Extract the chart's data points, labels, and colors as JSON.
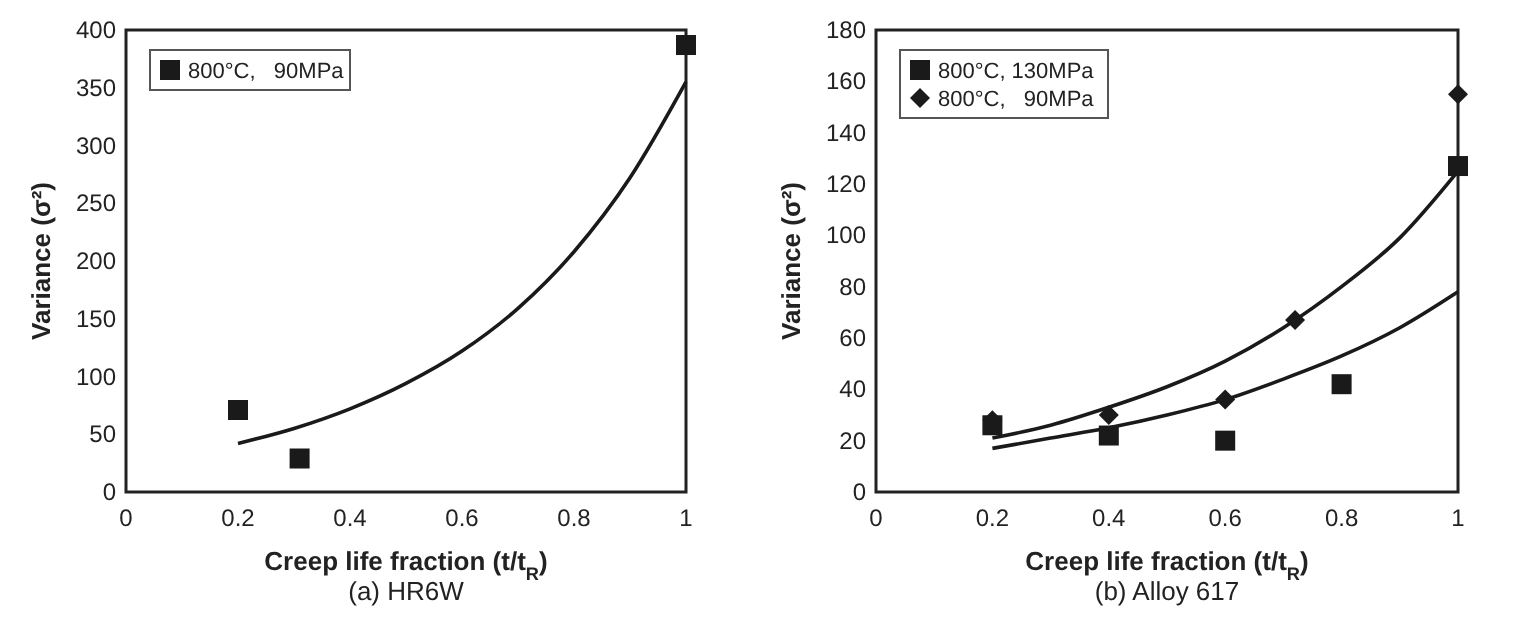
{
  "chart_data": [
    {
      "type": "scatter",
      "title": "(a) HR6W",
      "xlabel": "Creep life fraction (t/t$_{R}$)",
      "ylabel": "Variance (σ²)",
      "xlim": [
        0,
        1
      ],
      "xticks": [
        0,
        0.2,
        0.4,
        0.6,
        0.8,
        1
      ],
      "ylim": [
        0,
        400
      ],
      "yticks": [
        0,
        50,
        100,
        150,
        200,
        250,
        300,
        350,
        400
      ],
      "grid": false,
      "legend": "top left",
      "series": [
        {
          "name": "800°C,   90MPa",
          "color": "#1a1a1a",
          "marker": "square",
          "x": [
            0.2,
            0.31,
            1.0
          ],
          "values": [
            71,
            29,
            387
          ]
        },
        {
          "type": "line",
          "color": "#1a1a1a",
          "marker": "none",
          "x": [
            0.2,
            0.3,
            0.4,
            0.5,
            0.6,
            0.7,
            0.8,
            0.9,
            1.0
          ],
          "values": [
            42,
            55,
            72,
            94,
            122,
            159,
            208,
            272,
            355
          ]
        }
      ]
    },
    {
      "type": "scatter",
      "title": "(b) Alloy 617",
      "xlabel": "Creep life fraction (t/t$_{R}$)",
      "ylabel": "Variance (σ²)",
      "xlim": [
        0,
        1
      ],
      "xticks": [
        0,
        0.2,
        0.4,
        0.6,
        0.8,
        1
      ],
      "ylim": [
        0,
        180
      ],
      "yticks": [
        0,
        20,
        40,
        60,
        80,
        100,
        120,
        140,
        160,
        180
      ],
      "grid": false,
      "legend": "top left",
      "series": [
        {
          "name": "800°C, 130MPa",
          "color": "#1a1a1a",
          "marker": "square",
          "x": [
            0.2,
            0.4,
            0.6,
            0.8,
            1.0
          ],
          "values": [
            26,
            22,
            20,
            42,
            127
          ]
        },
        {
          "name": "800°C,   90MPa",
          "color": "#1a1a1a",
          "marker": "diamond",
          "x": [
            0.2,
            0.4,
            0.6,
            0.72,
            1.0
          ],
          "values": [
            28,
            30,
            36,
            67,
            155
          ]
        },
        {
          "type": "line",
          "color": "#1a1a1a",
          "marker": "none",
          "x": [
            0.2,
            0.3,
            0.4,
            0.5,
            0.6,
            0.7,
            0.8,
            0.9,
            1.0
          ],
          "values": [
            21,
            26,
            33,
            41,
            51,
            64,
            80,
            99,
            125
          ]
        },
        {
          "type": "line",
          "color": "#1a1a1a",
          "marker": "none",
          "x": [
            0.2,
            0.3,
            0.4,
            0.5,
            0.6,
            0.7,
            0.8,
            0.9,
            1.0
          ],
          "values": [
            17,
            21,
            25,
            30,
            36,
            44,
            53,
            64,
            78
          ]
        }
      ]
    }
  ]
}
